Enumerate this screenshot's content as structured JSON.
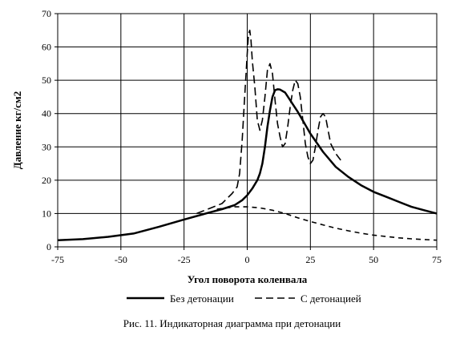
{
  "caption": "Рис. 11. Индикаторная диаграмма при детонации",
  "chart_data": {
    "type": "line",
    "title": "",
    "xlabel": "Угол поворота коленвала",
    "ylabel": "Давление кг/см2",
    "xlim": [
      -75,
      75
    ],
    "ylim": [
      0,
      70
    ],
    "xticks": [
      -75,
      -50,
      -25,
      0,
      25,
      50,
      75
    ],
    "yticks": [
      0,
      10,
      20,
      30,
      40,
      50,
      60,
      70
    ],
    "grid": true,
    "legend_position": "bottom",
    "series": [
      {
        "name": "Без детонации",
        "style": "solid",
        "points": [
          [
            -75,
            2
          ],
          [
            -65,
            2.3
          ],
          [
            -55,
            3
          ],
          [
            -45,
            4
          ],
          [
            -35,
            6
          ],
          [
            -25,
            8.2
          ],
          [
            -15,
            10.3
          ],
          [
            -10,
            11.3
          ],
          [
            -5,
            12.5
          ],
          [
            -2,
            14
          ],
          [
            0,
            15.5
          ],
          [
            2,
            17.5
          ],
          [
            4,
            20
          ],
          [
            5,
            22
          ],
          [
            6,
            25
          ],
          [
            7,
            30
          ],
          [
            8,
            36
          ],
          [
            9,
            41
          ],
          [
            10,
            45
          ],
          [
            11,
            47
          ],
          [
            12,
            47.3
          ],
          [
            13,
            47.2
          ],
          [
            15,
            46.3
          ],
          [
            17,
            44
          ],
          [
            20,
            40.5
          ],
          [
            25,
            34
          ],
          [
            30,
            28.5
          ],
          [
            35,
            24
          ],
          [
            40,
            21
          ],
          [
            45,
            18.5
          ],
          [
            50,
            16.5
          ],
          [
            55,
            15
          ],
          [
            60,
            13.5
          ],
          [
            65,
            12
          ],
          [
            70,
            11
          ],
          [
            75,
            10
          ]
        ]
      },
      {
        "name": "С детонацией",
        "style": "dashed",
        "points": [
          [
            -20,
            10
          ],
          [
            -15,
            11.5
          ],
          [
            -10,
            13
          ],
          [
            -6,
            16
          ],
          [
            -4,
            18
          ],
          [
            -3,
            22
          ],
          [
            -2,
            32
          ],
          [
            -1,
            45
          ],
          [
            0,
            58
          ],
          [
            0.5,
            64
          ],
          [
            1,
            65
          ],
          [
            1.5,
            62
          ],
          [
            2,
            56
          ],
          [
            3,
            48
          ],
          [
            4,
            38
          ],
          [
            5,
            35
          ],
          [
            6,
            38
          ],
          [
            7,
            45
          ],
          [
            8,
            53
          ],
          [
            9,
            55
          ],
          [
            10,
            52
          ],
          [
            11,
            44
          ],
          [
            12,
            37
          ],
          [
            13,
            33
          ],
          [
            14,
            30
          ],
          [
            15,
            31
          ],
          [
            16,
            36
          ],
          [
            17,
            42
          ],
          [
            18,
            47
          ],
          [
            19,
            50
          ],
          [
            20,
            49
          ],
          [
            21,
            45
          ],
          [
            22,
            38
          ],
          [
            23,
            31
          ],
          [
            24,
            27
          ],
          [
            25,
            25
          ],
          [
            26,
            26
          ],
          [
            27,
            30
          ],
          [
            28,
            35
          ],
          [
            29,
            39
          ],
          [
            30,
            40
          ],
          [
            31,
            39
          ],
          [
            32,
            35
          ],
          [
            33,
            31
          ],
          [
            35,
            28
          ],
          [
            37,
            26
          ]
        ]
      },
      {
        "name": "",
        "style": "dashed",
        "points": [
          [
            -12,
            11.3
          ],
          [
            -5,
            12
          ],
          [
            0,
            12
          ],
          [
            5,
            11.7
          ],
          [
            10,
            11
          ],
          [
            15,
            10
          ],
          [
            20,
            8.7
          ],
          [
            25,
            7.6
          ],
          [
            30,
            6.6
          ],
          [
            35,
            5.6
          ],
          [
            40,
            4.8
          ],
          [
            45,
            4.1
          ],
          [
            50,
            3.5
          ],
          [
            55,
            3.1
          ],
          [
            60,
            2.7
          ],
          [
            65,
            2.4
          ],
          [
            70,
            2.2
          ],
          [
            75,
            2
          ]
        ]
      }
    ]
  }
}
